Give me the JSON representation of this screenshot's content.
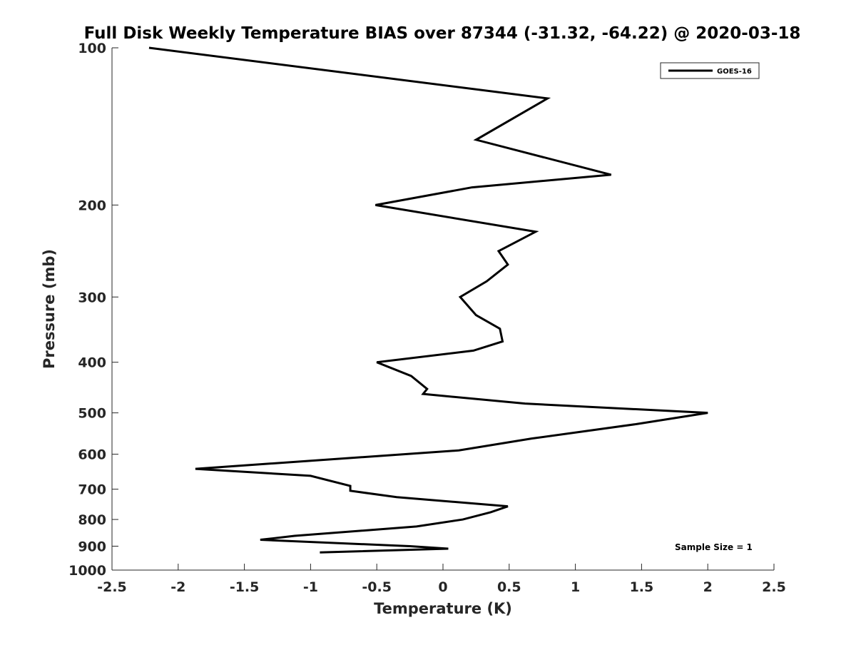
{
  "chart_data": {
    "type": "line",
    "title": "Full Disk Weekly Temperature BIAS over 87344 (-31.32, -64.22) @ 2020-03-18",
    "xlabel": "Temperature (K)",
    "ylabel": "Pressure (mb)",
    "xlim": [
      -2.5,
      2.5
    ],
    "ylim": [
      1000,
      100
    ],
    "y_scale": "log",
    "x_ticks": [
      -2.5,
      -2,
      -1.5,
      -1,
      -0.5,
      0,
      0.5,
      1,
      1.5,
      2,
      2.5
    ],
    "x_tick_labels": [
      "-2.5",
      "-2",
      "-1.5",
      "-1",
      "-0.5",
      "0",
      "0.5",
      "1",
      "1.5",
      "2",
      "2.5"
    ],
    "y_ticks": [
      100,
      200,
      300,
      400,
      500,
      600,
      700,
      800,
      900,
      1000
    ],
    "y_tick_labels": [
      "100",
      "200",
      "300",
      "400",
      "500",
      "600",
      "700",
      "800",
      "900",
      "1000"
    ],
    "grid": false,
    "legend_position": "top-right",
    "line_color": "#000000",
    "series": [
      {
        "name": "GOES-16",
        "temperature": [
          -2.22,
          0.79,
          0.25,
          1.27,
          0.22,
          -0.51,
          0.7,
          0.42,
          0.49,
          0.33,
          0.13,
          0.25,
          0.43,
          0.45,
          0.23,
          -0.5,
          -0.24,
          -0.12,
          -0.15,
          0.62,
          2.0,
          1.47,
          0.67,
          0.12,
          -1.87,
          -1.0,
          -0.7,
          -0.7,
          -0.35,
          0.49,
          0.36,
          0.15,
          -0.2,
          -1.12,
          -1.38,
          -0.25,
          0.04,
          -0.93
        ],
        "pressure": [
          100,
          125,
          150,
          175,
          185,
          200,
          225,
          245,
          260,
          280,
          300,
          325,
          345,
          365,
          380,
          400,
          425,
          450,
          460,
          480,
          500,
          525,
          560,
          590,
          640,
          660,
          690,
          705,
          725,
          755,
          775,
          800,
          825,
          860,
          875,
          900,
          910,
          925
        ]
      }
    ],
    "annotations": [
      "Sample Size = 1"
    ]
  }
}
